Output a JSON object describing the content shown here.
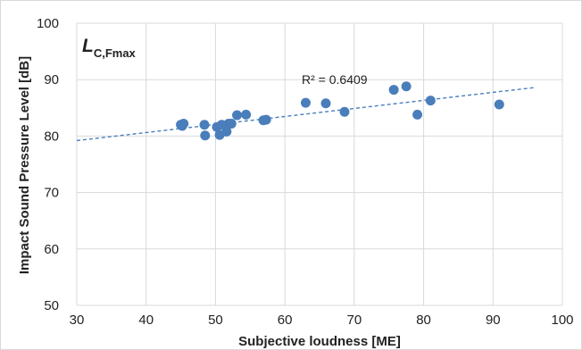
{
  "chart_data": {
    "type": "scatter",
    "title": "",
    "inset_label": {
      "main": "L",
      "sub": "C,Fmax"
    },
    "xlabel": "Subjective loudness [ME]",
    "ylabel": "Impact Sound Pressure Level [dB]",
    "xlim": [
      30,
      100
    ],
    "ylim": [
      50,
      100
    ],
    "xticks": [
      30,
      40,
      50,
      60,
      70,
      80,
      90,
      100
    ],
    "yticks": [
      50,
      60,
      70,
      80,
      90,
      100
    ],
    "grid": true,
    "color": "#4a7ebb",
    "r_squared_label": "R² = 0.6409",
    "trendline": {
      "x": [
        30,
        96
      ],
      "y": [
        79.2,
        88.6
      ]
    },
    "points": [
      {
        "x": 45.0,
        "y": 82.0
      },
      {
        "x": 45.4,
        "y": 82.2
      },
      {
        "x": 45.2,
        "y": 81.8
      },
      {
        "x": 48.4,
        "y": 82.0
      },
      {
        "x": 48.5,
        "y": 80.1
      },
      {
        "x": 50.2,
        "y": 81.6
      },
      {
        "x": 50.6,
        "y": 80.2
      },
      {
        "x": 50.9,
        "y": 82.0
      },
      {
        "x": 51.6,
        "y": 80.8
      },
      {
        "x": 51.9,
        "y": 82.2
      },
      {
        "x": 52.3,
        "y": 82.2
      },
      {
        "x": 53.1,
        "y": 83.7
      },
      {
        "x": 54.4,
        "y": 83.8
      },
      {
        "x": 56.9,
        "y": 82.8
      },
      {
        "x": 57.3,
        "y": 82.9
      },
      {
        "x": 63.0,
        "y": 85.9
      },
      {
        "x": 65.9,
        "y": 85.8
      },
      {
        "x": 68.6,
        "y": 84.3
      },
      {
        "x": 75.7,
        "y": 88.2
      },
      {
        "x": 77.5,
        "y": 88.8
      },
      {
        "x": 79.1,
        "y": 83.8
      },
      {
        "x": 81.0,
        "y": 86.3
      },
      {
        "x": 90.9,
        "y": 85.6
      }
    ]
  }
}
